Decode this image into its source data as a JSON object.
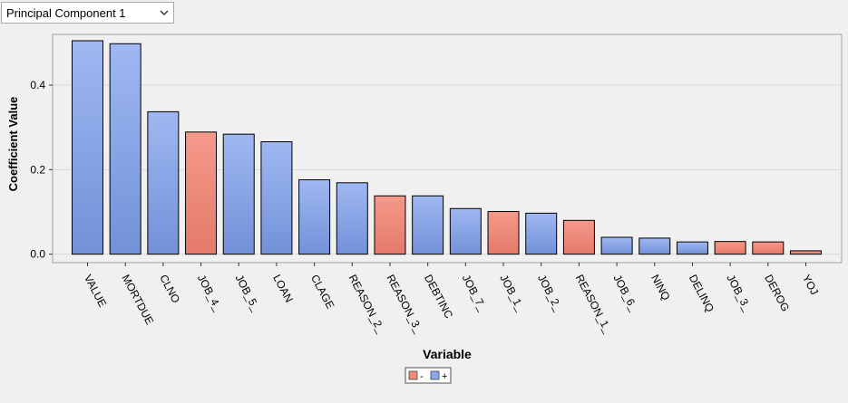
{
  "toolbar": {
    "dropdown_value": "Principal Component 1"
  },
  "icons": {
    "dropdown": "chevron-down-icon"
  },
  "colors": {
    "positive": "#8ca7ea",
    "negative": "#f08a7a",
    "plot_background": "#f0f0f0",
    "grid": "#d8d8d8"
  },
  "chart_data": {
    "type": "bar",
    "title": "",
    "xlabel": "Variable",
    "ylabel": "Coefficient Value",
    "ylim": [
      -0.02,
      0.52
    ],
    "yticks": [
      0.0,
      0.2,
      0.4
    ],
    "ytick_labels": [
      "0.0",
      "0.2",
      "0.4"
    ],
    "grid": true,
    "legend": {
      "placement": "bottom-center",
      "entries": [
        {
          "label": "-",
          "color": "#f08a7a"
        },
        {
          "label": "+",
          "color": "#8ca7ea"
        }
      ]
    },
    "categories": [
      "VALUE",
      "MORTDUE",
      "CLNO",
      "JOB_4_",
      "JOB_5_",
      "LOAN",
      "CLAGE",
      "REASON_2_",
      "REASON_3_",
      "DEBTINC",
      "JOB_7_",
      "JOB_1_",
      "JOB_2_",
      "REASON_1_",
      "JOB_6_",
      "NINQ",
      "DELINQ",
      "JOB_3_",
      "DEROG",
      "YOJ"
    ],
    "values": [
      0.505,
      0.498,
      0.337,
      0.289,
      0.284,
      0.266,
      0.176,
      0.169,
      0.138,
      0.138,
      0.108,
      0.101,
      0.097,
      0.08,
      0.04,
      0.038,
      0.029,
      0.03,
      0.029,
      0.008
    ],
    "signs": [
      "+",
      "+",
      "+",
      "-",
      "+",
      "+",
      "+",
      "+",
      "-",
      "+",
      "+",
      "-",
      "+",
      "-",
      "+",
      "+",
      "+",
      "-",
      "-",
      "-"
    ]
  }
}
